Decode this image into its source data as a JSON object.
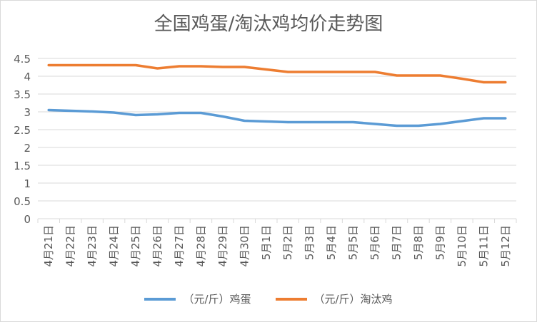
{
  "chart_data": {
    "type": "line",
    "title": "全国鸡蛋/淘汰鸡均价走势图",
    "xlabel": "",
    "ylabel": "",
    "ylim": [
      0,
      4.5
    ],
    "yticks": [
      "0",
      "0.5",
      "1",
      "1.5",
      "2",
      "2.5",
      "3",
      "3.5",
      "4",
      "4.5"
    ],
    "grid": true,
    "legend_position": "bottom",
    "categories": [
      "4月21日",
      "4月22日",
      "4月23日",
      "4月24日",
      "4月25日",
      "4月26日",
      "4月27日",
      "4月28日",
      "4月29日",
      "4月30日",
      "5月1日",
      "5月2日",
      "5月3日",
      "5月4日",
      "5月5日",
      "5月6日",
      "5月7日",
      "5月8日",
      "5月9日",
      "5月10日",
      "5月11日",
      "5月12日"
    ],
    "series": [
      {
        "name": "（元/斤）鸡蛋",
        "color": "#5b9bd5",
        "values": [
          3.05,
          3.03,
          3.01,
          2.98,
          2.91,
          2.93,
          2.97,
          2.97,
          2.87,
          2.75,
          2.73,
          2.71,
          2.71,
          2.71,
          2.71,
          2.66,
          2.61,
          2.61,
          2.66,
          2.74,
          2.82,
          2.82
        ]
      },
      {
        "name": "（元/斤）淘汰鸡",
        "color": "#ed7d31",
        "values": [
          4.31,
          4.31,
          4.31,
          4.31,
          4.31,
          4.22,
          4.28,
          4.28,
          4.26,
          4.26,
          4.19,
          4.12,
          4.12,
          4.12,
          4.12,
          4.12,
          4.02,
          4.02,
          4.02,
          3.93,
          3.83,
          3.83
        ]
      }
    ]
  }
}
